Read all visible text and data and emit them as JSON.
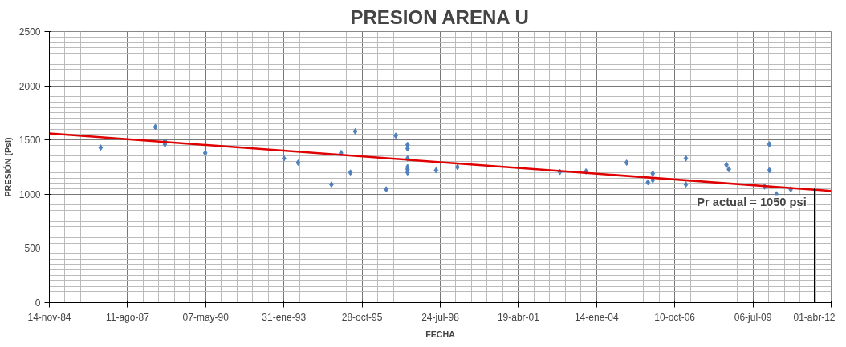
{
  "chart_data": {
    "type": "scatter",
    "title": "PRESION ARENA U",
    "xlabel": "FECHA",
    "ylabel": "PRESIÓN (Psi)",
    "xlim": [
      "1984-11-14",
      "2012-04-01"
    ],
    "xticks": [
      {
        "value": "1984-11-14",
        "label": "14-nov-84"
      },
      {
        "value": "1987-08-11",
        "label": "11-ago-87"
      },
      {
        "value": "1990-05-07",
        "label": "07-may-90"
      },
      {
        "value": "1993-01-31",
        "label": "31-ene-93"
      },
      {
        "value": "1995-10-28",
        "label": "28-oct-95"
      },
      {
        "value": "1998-07-24",
        "label": "24-jul-98"
      },
      {
        "value": "2001-04-19",
        "label": "19-abr-01"
      },
      {
        "value": "2004-01-14",
        "label": "14-ene-04"
      },
      {
        "value": "2006-10-10",
        "label": "10-oct-06"
      },
      {
        "value": "2009-07-06",
        "label": "06-jul-09"
      },
      {
        "value": "2012-04-01",
        "label": "01-abr-12"
      }
    ],
    "ylim": [
      0,
      2500
    ],
    "yticks": [
      0,
      500,
      1000,
      1500,
      2000,
      2500
    ],
    "grid": true,
    "series": [
      {
        "marker": "diamond",
        "color": "#4f81bd",
        "x": [
          "1986-09",
          "1988-08",
          "1988-12",
          "1988-12",
          "1990-05",
          "1993-02",
          "1993-08",
          "1994-10",
          "1995-02",
          "1995-06",
          "1995-08",
          "1996-09",
          "1997-01",
          "1997-06",
          "1997-06",
          "1997-06",
          "1997-06",
          "1997-06",
          "1997-06",
          "1998-06",
          "1999-03",
          "2002-10",
          "2003-09",
          "2005-02",
          "2005-11",
          "2006-01",
          "2006-01",
          "2007-03",
          "2007-03",
          "2008-08",
          "2008-09",
          "2009-12",
          "2010-02",
          "2010-02",
          "2010-05",
          "2010-11"
        ],
        "values": [
          1430,
          1620,
          1490,
          1460,
          1380,
          1330,
          1290,
          1090,
          1380,
          1200,
          1580,
          1045,
          1540,
          1455,
          1420,
          1330,
          1250,
          1230,
          1200,
          1220,
          1250,
          1205,
          1210,
          1290,
          1110,
          1130,
          1190,
          1330,
          1090,
          1270,
          1230,
          1070,
          1220,
          1460,
          1000,
          1045
        ]
      },
      {
        "type": "line",
        "color": "#e00000",
        "x": [
          "1984-11-14",
          "2012-04-01"
        ],
        "values": [
          1560,
          1030
        ]
      }
    ],
    "annotations": [
      {
        "text": "Pr actual = 1050 psi",
        "x": "2011-09",
        "y": 1050
      }
    ]
  }
}
